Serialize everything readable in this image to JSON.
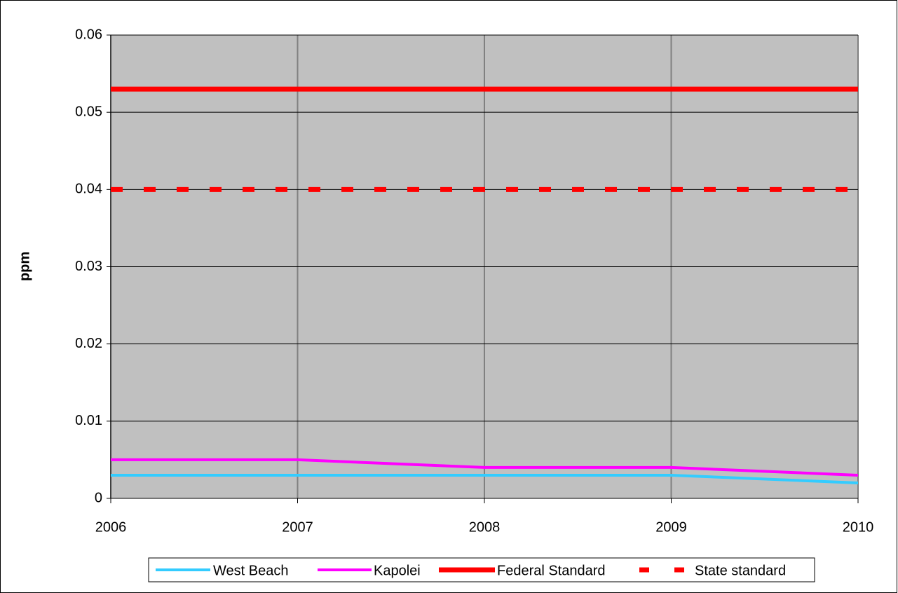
{
  "chart_data": {
    "type": "line",
    "y_label": "ppm",
    "x": [
      2006,
      2007,
      2008,
      2009,
      2010
    ],
    "series": [
      {
        "name": "West Beach",
        "color": "#33ccff",
        "line_style": "solid",
        "values": [
          0.003,
          0.003,
          0.003,
          0.003,
          0.002
        ]
      },
      {
        "name": "Kapolei",
        "color": "#ff00ff",
        "line_style": "solid",
        "values": [
          0.005,
          0.005,
          0.004,
          0.004,
          0.003
        ]
      },
      {
        "name": "Federal Standard",
        "color": "#ff0000",
        "line_style": "solid",
        "values": [
          0.053,
          0.053,
          0.053,
          0.053,
          0.053
        ]
      },
      {
        "name": "State standard",
        "color": "#ff0000",
        "line_style": "dashed",
        "values": [
          0.04,
          0.04,
          0.04,
          0.04,
          0.04
        ]
      }
    ],
    "xlim": [
      2006,
      2010
    ],
    "xticks": [
      2006,
      2007,
      2008,
      2009,
      2010
    ],
    "ylim": [
      0,
      0.06
    ],
    "yticks": [
      0,
      0.01,
      0.02,
      0.03,
      0.04,
      0.05,
      0.06
    ],
    "grid": true,
    "legend": "bottom",
    "plot_background": "#c0c0c0"
  }
}
